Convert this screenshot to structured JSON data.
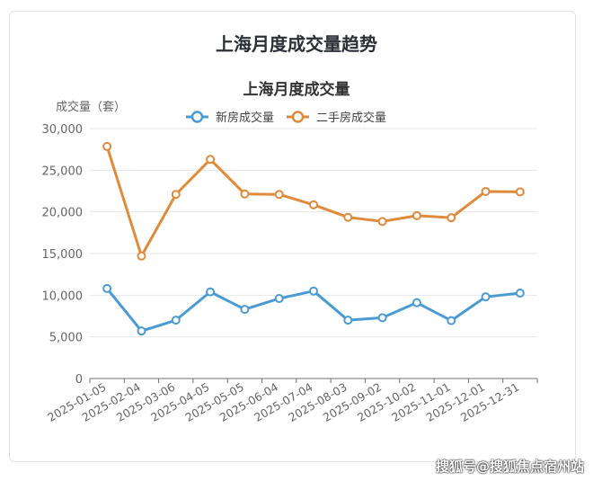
{
  "title": "上海月度成交量趋势",
  "watermark": "搜狐号@搜狐焦点宿州站",
  "chart_data": {
    "type": "line",
    "title": "上海月度成交量",
    "ylabel": "成交量（套）",
    "xlabel": "",
    "categories": [
      "2025-01-05",
      "2025-02-04",
      "2025-03-06",
      "2025-04-05",
      "2025-05-05",
      "2025-06-04",
      "2025-07-04",
      "2025-08-03",
      "2025-09-02",
      "2025-10-02",
      "2025-11-01",
      "2025-12-01",
      "2025-12-31"
    ],
    "ylim": [
      0,
      30000
    ],
    "yticks": [
      "0",
      "5,000",
      "10,000",
      "15,000",
      "20,000",
      "25,000",
      "30,000"
    ],
    "grid": true,
    "legend_position": "top",
    "series": [
      {
        "name": "新房成交量",
        "color": "#4a9ad4",
        "values": [
          10800,
          5700,
          7000,
          10400,
          8300,
          9600,
          10500,
          7000,
          7300,
          9100,
          6950,
          9800,
          10250
        ]
      },
      {
        "name": "二手房成交量",
        "color": "#e08a3c",
        "values": [
          27850,
          14700,
          22100,
          26300,
          22150,
          22100,
          20850,
          19350,
          18850,
          19550,
          19300,
          22450,
          22400
        ]
      }
    ]
  }
}
